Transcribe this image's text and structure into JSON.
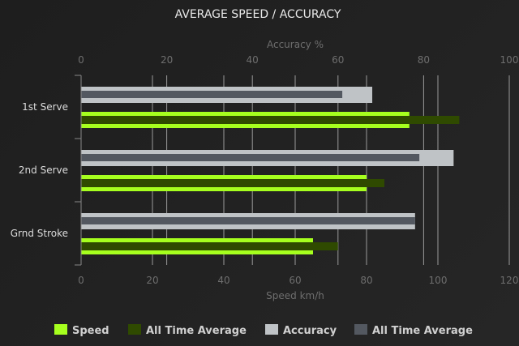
{
  "chart_data": {
    "type": "bar",
    "orientation": "horizontal",
    "title": "AVERAGE SPEED / ACCURACY",
    "categories": [
      "1st Serve",
      "2nd Serve",
      "Grnd Stroke"
    ],
    "x_axis_bottom": {
      "label": "Speed km/h",
      "range": [
        0,
        120
      ],
      "ticks": [
        0,
        20,
        40,
        60,
        80,
        100,
        120
      ]
    },
    "x_axis_top": {
      "label": "Accuracy %",
      "range": [
        0,
        100
      ],
      "ticks": [
        0,
        20,
        40,
        60,
        80,
        100
      ]
    },
    "series": [
      {
        "name": "Speed",
        "axis": "bottom",
        "color": "#a6ff1e",
        "values": [
          92,
          80,
          65
        ]
      },
      {
        "name": "All Time Average",
        "axis": "bottom",
        "color": "#2f4a00",
        "values": [
          106,
          85,
          72
        ]
      },
      {
        "name": "Accuracy",
        "axis": "top",
        "color": "#bfc3c6",
        "values": [
          68,
          87,
          78
        ]
      },
      {
        "name": "All Time Average",
        "axis": "top",
        "color": "#535860",
        "values": [
          61,
          79,
          78
        ]
      }
    ],
    "grid": true,
    "legend": "bottom"
  }
}
